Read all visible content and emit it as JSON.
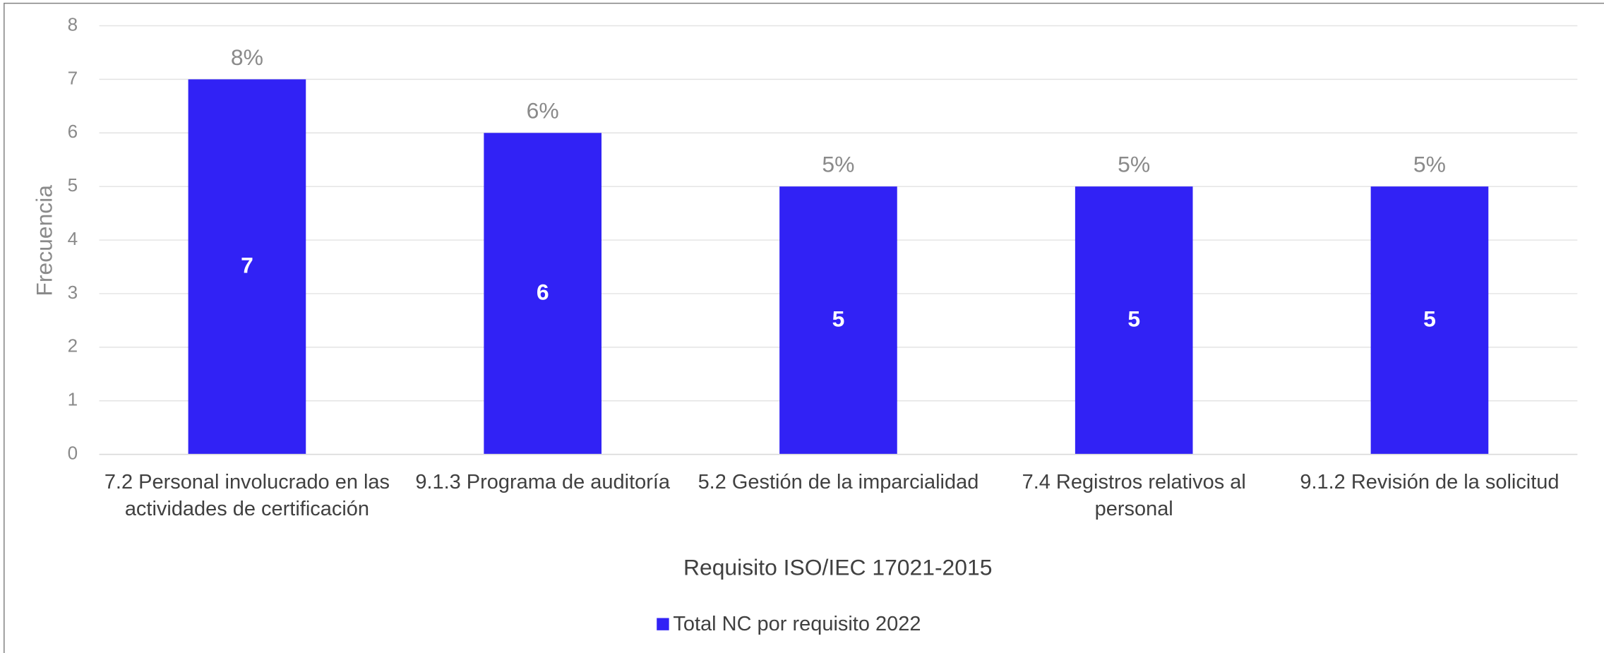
{
  "chart_data": {
    "type": "bar",
    "x_label": "Requisito ISO/IEC 17021-2015",
    "y_label": "Frecuencia",
    "categories": [
      "7.2 Personal involucrado en las actividades de certificación",
      "9.1.3 Programa de auditoría",
      "5.2 Gestión de la imparcialidad",
      "7.4 Registros relativos al personal",
      "9.1.2 Revisión de la solicitud"
    ],
    "series": [
      {
        "name": "Total NC por requisito 2022",
        "color": "#3122f5",
        "values": [
          7,
          6,
          5,
          5,
          5
        ]
      }
    ],
    "percent_labels": [
      "8%",
      "6%",
      "5%",
      "5%",
      "5%"
    ],
    "ylim": [
      0,
      8
    ],
    "yticks": [
      0,
      1,
      2,
      3,
      4,
      5,
      6,
      7,
      8
    ],
    "grid": true,
    "legend": "bottom"
  }
}
